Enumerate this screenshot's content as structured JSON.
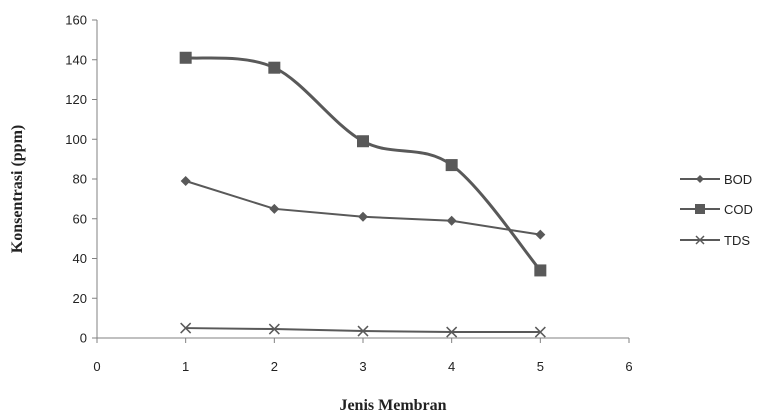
{
  "chart_data": {
    "type": "line",
    "title": "",
    "xlabel": "Jenis Membran",
    "ylabel": "Konsentrasi (ppm)",
    "xlim": [
      0,
      6
    ],
    "ylim": [
      0,
      160
    ],
    "x_ticks": [
      "0",
      "1",
      "2",
      "3",
      "4",
      "5",
      "6"
    ],
    "y_ticks": [
      "0",
      "20",
      "40",
      "60",
      "80",
      "100",
      "120",
      "140",
      "160"
    ],
    "grid": false,
    "legend": "right",
    "x": [
      1,
      2,
      3,
      4,
      5
    ],
    "series": [
      {
        "name": "BOD",
        "marker": "diamond",
        "smooth": false,
        "values": [
          79,
          65,
          61,
          59,
          52
        ]
      },
      {
        "name": "COD",
        "marker": "square",
        "smooth": true,
        "values": [
          141,
          136,
          99,
          87,
          34
        ]
      },
      {
        "name": "TDS",
        "marker": "x",
        "smooth": false,
        "values": [
          5,
          4.5,
          3.5,
          3,
          3
        ]
      }
    ],
    "colors": {
      "series": "#595959",
      "axis": "#808080",
      "text": "#222222"
    }
  }
}
